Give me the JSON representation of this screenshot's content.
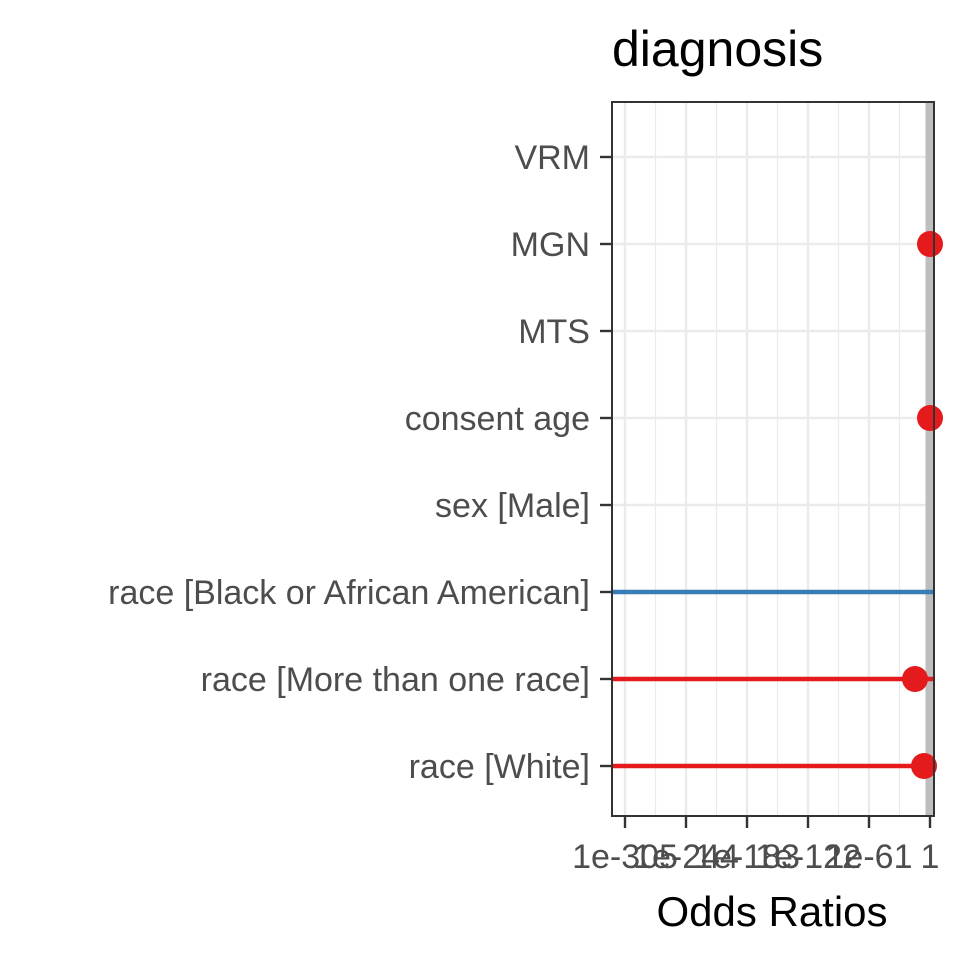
{
  "chart_data": {
    "type": "forest",
    "title": "diagnosis",
    "xlabel": "Odds Ratios",
    "x_scale": "log",
    "grid": true,
    "legend": "none",
    "reference_line_x": 1,
    "x_tick_labels": [
      "1e-305",
      "1e-244",
      "1e-183",
      "1e-122",
      "1e-61",
      "1"
    ],
    "x_tick_exponents": [
      -305,
      -244,
      -183,
      -122,
      -61,
      0
    ],
    "x_range_exponents": [
      -318,
      4
    ],
    "terms": [
      {
        "label": "VRM",
        "estimate_exp": null,
        "ci_low_exp": null,
        "ci_high_exp": null,
        "color": ""
      },
      {
        "label": "MGN",
        "estimate_exp": 0,
        "ci_low_exp": null,
        "ci_high_exp": null,
        "color": "#e41a1c"
      },
      {
        "label": "MTS",
        "estimate_exp": null,
        "ci_low_exp": null,
        "ci_high_exp": null,
        "color": ""
      },
      {
        "label": "consent age",
        "estimate_exp": 0,
        "ci_low_exp": null,
        "ci_high_exp": null,
        "color": "#e41a1c"
      },
      {
        "label": "sex [Male]",
        "estimate_exp": null,
        "ci_low_exp": null,
        "ci_high_exp": null,
        "color": ""
      },
      {
        "label": "race [Black or African American]",
        "estimate_exp": null,
        "ci_low_exp": -318,
        "ci_high_exp": 4,
        "color": "#377eb8"
      },
      {
        "label": "race [More than one race]",
        "estimate_exp": -15,
        "ci_low_exp": -318,
        "ci_high_exp": 4,
        "color": "#e41a1c"
      },
      {
        "label": "race [White]",
        "estimate_exp": -6,
        "ci_low_exp": -318,
        "ci_high_exp": 4,
        "color": "#e41a1c"
      }
    ],
    "colors": {
      "positive": "#e41a1c",
      "negative": "#377eb8",
      "reference_line": "#bebebe",
      "grid": "#ebebeb"
    }
  }
}
